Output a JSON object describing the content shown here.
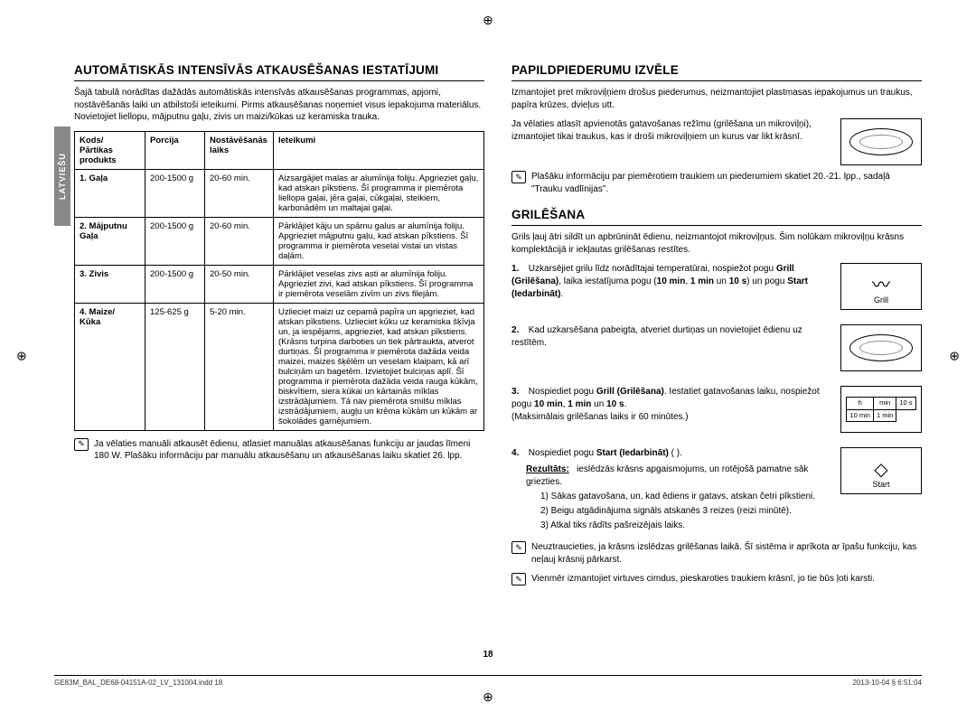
{
  "sideTab": "LATVIEŠU",
  "left": {
    "heading": "AUTOMĀTISKĀS INTENSĪVĀS ATKAUSĒŠANAS IESTATĪJUMI",
    "intro": "Šajā tabulā norādītas dažādās automātiskās intensīvās atkausēšanas programmas, apjomi, nostāvēšanās laiki un atbilstoši ieteikumi. Pirms atkausēšanas noņemiet visus iepakojuma materiālus. Novietojiet liellopu, mājputnu gaļu, zivis un maizi/kūkas uz keramiska trauka.",
    "table": {
      "headers": [
        "Kods/\nPārtikas produkts",
        "Porcija",
        "Nostāvēšanās laiks",
        "Ieteikumi"
      ],
      "rows": [
        {
          "c0": "1. Gaļa",
          "c1": "200-1500 g",
          "c2": "20-60 min.",
          "c3": "Aizsargājiet malas ar alumīnija foliju. Apgrieziet gaļu, kad atskan pīkstiens. Šī programma ir piemērota liellopa gaļai, jēra gaļai, cūkgaļai, steikiem, karbonādēm un maltajai gaļai."
        },
        {
          "c0": "2. Mājputnu Gaļa",
          "c1": "200-1500 g",
          "c2": "20-60 min.",
          "c3": "Pārklājiet kāju un spārnu galus ar alumīnija foliju. Apgrieziet mājputnu gaļu, kad atskan pīkstiens. Šī programma ir piemērota veselai vistai un vistas daļām."
        },
        {
          "c0": "3. Zivis",
          "c1": "200-1500 g",
          "c2": "20-50 min.",
          "c3": "Pārklājiet veselas zivs asti ar alumīnija foliju. Apgrieziet zivi, kad atskan pīkstiens. Šī programma ir piemērota veselām zivīm un zivs filejām."
        },
        {
          "c0": "4. Maize/\nKūka",
          "c1": "125-625 g",
          "c2": "5-20 min.",
          "c3": "Uzlieciet maizi uz cepamā papīra un apgrieziet, kad atskan pīkstiens. Uzlieciet kūku uz keramiska šķīvja un, ja iespējams, apgrieziet, kad atskan pīkstiens. (Krāsns turpina darboties un tiek pārtraukta, atverot durtiņas. Šī programma ir piemērota dažāda veida maizei, maizes šķēlēm un veselam klaipam, kā arī bulciņām un bagetēm. Izvietojiet bulciņas aplī. Šī programma ir piemērota dažāda veida rauga kūkām, biskvītiem, siera kūkai un kārtainās mīklas izstrādājumiem. Tā nav piemērota smilšu mīklas izstrādājumiem, augļu un krēma kūkām un kūkām ar šokolādes garnējumiem."
        }
      ]
    },
    "note": "Ja vēlaties manuāli atkausēt ēdienu, atlasiet manuālas atkausēšanas funkciju ar jaudas līmeni 180 W. Plašāku informāciju par manuālu atkausēšanu un atkausēšanas laiku skatiet 26. lpp."
  },
  "right": {
    "acc": {
      "heading": "PAPILDPIEDERUMU IZVĒLE",
      "p1": "Izmantojiet pret mikroviļņiem drošus piederumus, neizmantojiet plastmasas iepakojumus un traukus, papīra krūzes, dvieļus utt.",
      "p2a": "Ja vēlaties atlasīt apvienotās gatavošanas režīmu (grilēšana un mikroviļņi), izmantojiet tikai traukus, kas ir droši mikroviļņiem un kurus var likt krāsnī.",
      "note": "Plašāku informāciju par piemērotiem traukiem un piederumiem skatiet 20.-21. lpp., sadaļā \"Trauku vadlīnijas\"."
    },
    "grill": {
      "heading": "GRILĒŠANA",
      "intro": "Grils ļauj ātri sildīt un apbrūnināt ēdienu, neizmantojot mikroviļņus. Šim nolūkam mikroviļņu krāsns komplektācijā ir iekļautas grilēšanas restītes.",
      "step1": "Uzkarsējiet grilu līdz norādītajai temperatūrai, nospiežot pogu ",
      "step1b": "Grill (Grilēšana)",
      "step1c": ", laika iestatījuma pogu (",
      "step1d": "10 min",
      "step1e": "1 min",
      "step1f": "10 s",
      "step1g": ") un pogu ",
      "step1h": "Start (Iedarbināt)",
      "grillLabel": "Grill",
      "step2": "Kad uzkarsēšana pabeigta, atveriet durtiņas un novietojiet ēdienu uz restītēm.",
      "step3a": "Nospiediet pogu ",
      "step3b": "Grill (Grilēšana)",
      "step3c": ". Iestatiet gatavošanas laiku, nospiežot pogu ",
      "step3d": "10 min",
      "step3e": "1 min",
      "step3f": "10 s",
      "step3g": "(Maksimālais grilēšanas laiks ir 60 minūtes.)",
      "miniHead": [
        "h",
        "min",
        ""
      ],
      "miniRow": [
        "10 min",
        "1 min",
        "10 s"
      ],
      "step4a": "Nospiediet pogu ",
      "step4b": "Start (Iedarbināt)",
      "step4c": " (      ).",
      "resultLabel": "Rezultāts:",
      "resultText": "ieslēdzās krāsns apgaismojums, un rotējošā pamatne sāk griezties.",
      "r1": "1)  Sākas gatavošana, un, kad ēdiens ir gatavs, atskan četri pīkstieni.",
      "r2": "2)  Beigu atgādinājuma signāls atskanēs 3 reizes (reizi minūtē).",
      "r3": "3)  Atkal tiks rādīts pašreizējais laiks.",
      "startLabel": "Start",
      "note1": "Neuztraucieties, ja krāsns izslēdzas grilēšanas laikā. Šī sistēma ir aprīkota ar īpašu funkciju, kas neļauj krāsnij pārkarst.",
      "note2": "Vienmēr izmantojiet virtuves cimdus, pieskaroties traukiem krāsnī, jo tie būs ļoti karsti."
    }
  },
  "pageNumber": "18",
  "footer": {
    "left": "GE83M_BAL_DE68-04151A-02_LV_131004.indd   18",
    "right": "2013-10-04   §  6:51:04"
  }
}
